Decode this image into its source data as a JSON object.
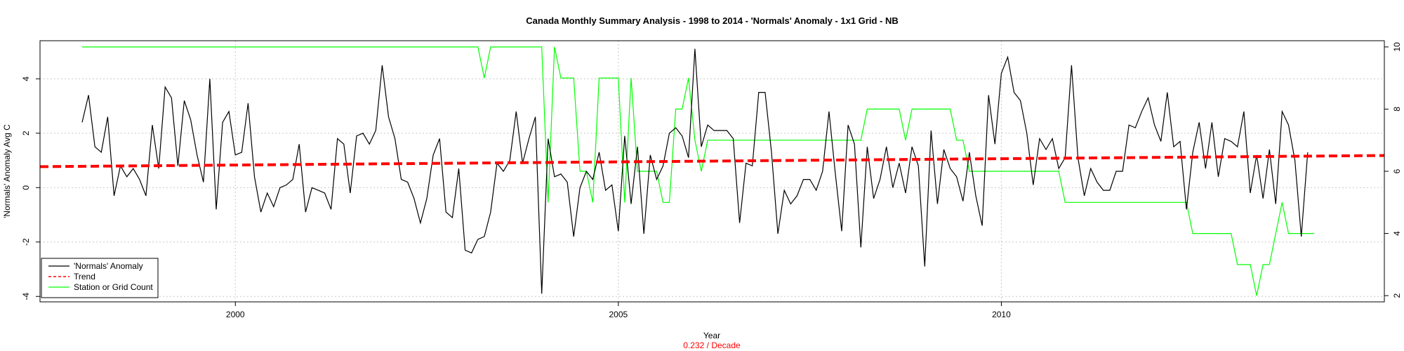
{
  "chart_data": {
    "type": "line",
    "title": "Canada Monthly Summary Analysis - 1998 to 2014 - 'Normals' Anomaly - 1x1 Grid - NB",
    "xlabel": "Year",
    "ylabel": "'Normals' Anomaly Avg C",
    "y2label": "",
    "trend_text": "0.232  / Decade",
    "xlim": [
      1997.45,
      2015.0
    ],
    "ylim": [
      -4.2,
      5.4
    ],
    "y2lim": [
      1.8,
      10.2
    ],
    "x_ticks": [
      2000,
      2005,
      2010
    ],
    "y_ticks": [
      -4,
      -2,
      0,
      2,
      4
    ],
    "y2_ticks": [
      2,
      4,
      6,
      8,
      10
    ],
    "grid": true,
    "legend_position": "bottom-left",
    "legend": [
      {
        "label": "'Normals' Anomaly",
        "color": "#000000",
        "style": "solid"
      },
      {
        "label": "Trend",
        "color": "#ff0000",
        "style": "dashed"
      },
      {
        "label": "Station or Grid Count",
        "color": "#00ff00",
        "style": "solid"
      }
    ],
    "series": [
      {
        "name": "'Normals' Anomaly",
        "axis": "left",
        "color": "#000000",
        "x_start": 1998.0,
        "x_step": 0.08333,
        "values": [
          2.4,
          3.4,
          1.5,
          1.3,
          2.6,
          -0.3,
          0.8,
          0.4,
          0.7,
          0.3,
          -0.3,
          2.3,
          0.7,
          3.7,
          3.3,
          0.8,
          3.2,
          2.5,
          1.2,
          0.2,
          4.0,
          -0.8,
          2.4,
          2.8,
          1.2,
          1.3,
          3.1,
          0.4,
          -0.9,
          -0.2,
          -0.7,
          0.0,
          0.1,
          0.3,
          1.6,
          -0.9,
          0.0,
          -0.1,
          -0.2,
          -0.8,
          1.8,
          1.6,
          -0.2,
          1.9,
          2.0,
          1.6,
          2.1,
          4.5,
          2.6,
          1.8,
          0.3,
          0.2,
          -0.4,
          -1.3,
          -0.4,
          1.2,
          1.8,
          -0.9,
          -1.1,
          0.7,
          -2.3,
          -2.4,
          -1.9,
          -1.8,
          -0.9,
          0.9,
          0.6,
          1.0,
          2.8,
          0.9,
          1.8,
          2.6,
          -3.9,
          1.8,
          0.4,
          0.5,
          0.2,
          -1.8,
          0.0,
          0.6,
          0.3,
          1.3,
          -0.1,
          0.1,
          -1.6,
          1.9,
          -0.6,
          1.5,
          -1.7,
          1.2,
          0.3,
          0.8,
          2.0,
          2.2,
          1.9,
          1.1,
          5.1,
          1.5,
          2.3,
          2.1,
          2.1,
          2.1,
          1.8,
          -1.3,
          0.9,
          0.8,
          3.5,
          3.5,
          1.3,
          -1.7,
          -0.1,
          -0.6,
          -0.3,
          0.3,
          0.3,
          -0.1,
          0.6,
          2.8,
          0.5,
          -1.6,
          2.3,
          1.6,
          -2.2,
          1.5,
          -0.4,
          0.3,
          1.5,
          0.0,
          0.9,
          -0.2,
          1.5,
          0.8,
          -2.9,
          2.1,
          -0.6,
          1.4,
          0.7,
          0.4,
          -0.5,
          1.3,
          -0.3,
          -1.4,
          3.4,
          1.6,
          4.2,
          4.8,
          3.5,
          3.2,
          2.0,
          0.1,
          1.8,
          1.4,
          1.8,
          0.7,
          1.1,
          4.5,
          1.1,
          -0.3,
          0.7,
          0.2,
          -0.1,
          -0.1,
          0.6,
          0.6,
          2.3,
          2.2,
          2.8,
          3.3,
          2.3,
          1.7,
          3.5,
          1.5,
          1.7,
          -0.8,
          1.3,
          2.4,
          0.7,
          2.4,
          0.4,
          1.8,
          1.7,
          1.5,
          2.8,
          -0.2,
          1.2,
          -0.4,
          1.4,
          -0.6,
          2.8,
          2.3,
          1.0,
          -1.8,
          1.3
        ]
      },
      {
        "name": "Trend",
        "axis": "left",
        "color": "#ff0000",
        "x": [
          1997.45,
          2015.0
        ],
        "values": [
          0.77,
          1.18
        ]
      },
      {
        "name": "Station or Grid Count",
        "axis": "right",
        "color": "#00ff00",
        "x_start": 1998.0,
        "x_step": 0.08333,
        "values": [
          10,
          10,
          10,
          10,
          10,
          10,
          10,
          10,
          10,
          10,
          10,
          10,
          10,
          10,
          10,
          10,
          10,
          10,
          10,
          10,
          10,
          10,
          10,
          10,
          10,
          10,
          10,
          10,
          10,
          10,
          10,
          10,
          10,
          10,
          10,
          10,
          10,
          10,
          10,
          10,
          10,
          10,
          10,
          10,
          10,
          10,
          10,
          10,
          10,
          10,
          10,
          10,
          10,
          10,
          10,
          10,
          10,
          10,
          10,
          10,
          10,
          10,
          10,
          9,
          10,
          10,
          10,
          10,
          10,
          10,
          10,
          10,
          10,
          5,
          10,
          9,
          9,
          9,
          6,
          6,
          5,
          9,
          9,
          9,
          9,
          5,
          9,
          6,
          6,
          6,
          6,
          5,
          5,
          8,
          8,
          9,
          7,
          6,
          7,
          7,
          7,
          7,
          7,
          7,
          7,
          7,
          7,
          7,
          7,
          7,
          7,
          7,
          7,
          7,
          7,
          7,
          7,
          7,
          7,
          7,
          7,
          7,
          7,
          8,
          8,
          8,
          8,
          8,
          8,
          7,
          8,
          8,
          8,
          8,
          8,
          8,
          8,
          7,
          7,
          6,
          6,
          6,
          6,
          6,
          6,
          6,
          6,
          6,
          6,
          6,
          6,
          6,
          6,
          6,
          5,
          5,
          5,
          5,
          5,
          5,
          5,
          5,
          5,
          5,
          5,
          5,
          5,
          5,
          5,
          5,
          5,
          5,
          5,
          5,
          4,
          4,
          4,
          4,
          4,
          4,
          4,
          3,
          3,
          3,
          2,
          3,
          3,
          4,
          5,
          4,
          4,
          4,
          4,
          4
        ]
      }
    ]
  }
}
